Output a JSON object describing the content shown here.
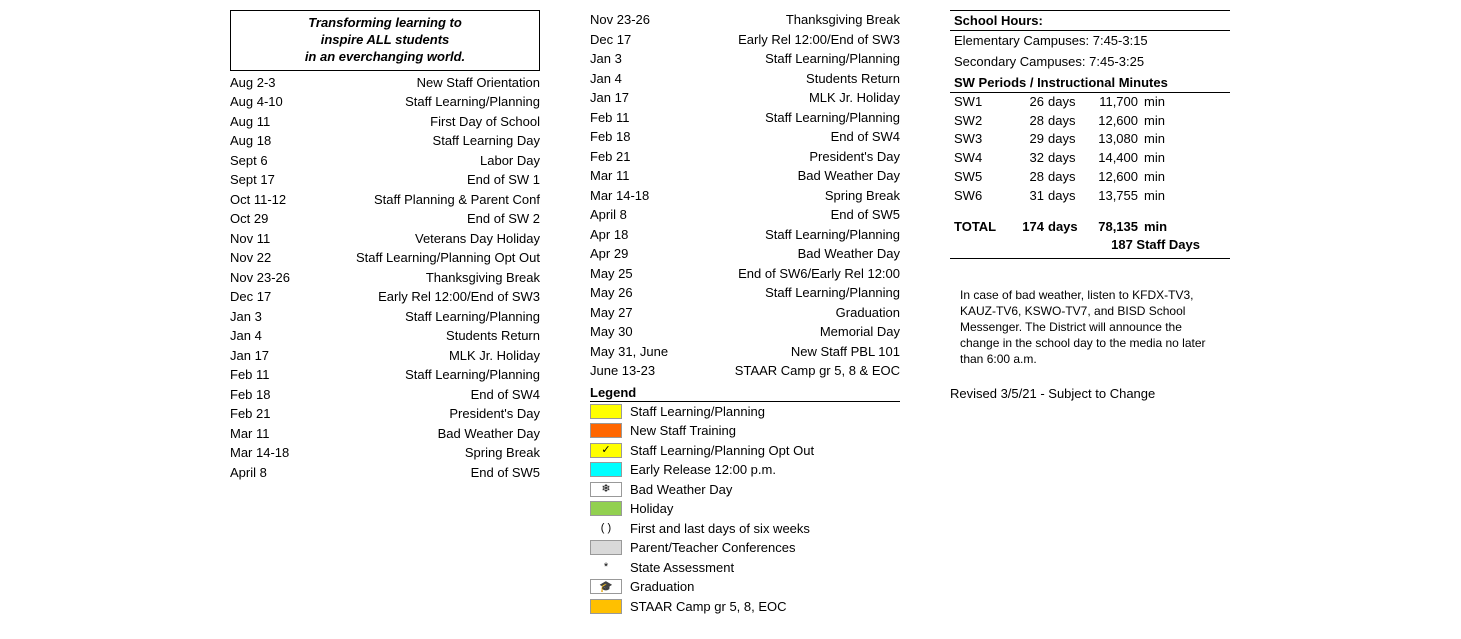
{
  "motto": {
    "line1": "Transforming learning to",
    "line2": "inspire ALL students",
    "line3": "in an everchanging world."
  },
  "col1_events": [
    {
      "date": "Aug 2-3",
      "desc": "New Staff Orientation"
    },
    {
      "date": "Aug 4-10",
      "desc": "Staff Learning/Planning"
    },
    {
      "date": "Aug 11",
      "desc": "First Day of School"
    },
    {
      "date": "Aug 18",
      "desc": "Staff Learning Day"
    },
    {
      "date": "Sept 6",
      "desc": "Labor Day"
    },
    {
      "date": "Sept 17",
      "desc": "End of SW 1"
    },
    {
      "date": "Oct 11-12",
      "desc": "Staff Planning & Parent Conf"
    },
    {
      "date": "Oct 29",
      "desc": "End of SW 2"
    },
    {
      "date": "Nov 11",
      "desc": "Veterans Day Holiday"
    },
    {
      "date": "Nov 22",
      "desc": "Staff Learning/Planning Opt Out"
    },
    {
      "date": "Nov 23-26",
      "desc": "Thanksgiving Break"
    },
    {
      "date": "Dec 17",
      "desc": "Early Rel 12:00/End of SW3"
    },
    {
      "date": "Jan 3",
      "desc": "Staff Learning/Planning"
    },
    {
      "date": "Jan 4",
      "desc": "Students Return"
    },
    {
      "date": "Jan 17",
      "desc": "MLK Jr. Holiday"
    },
    {
      "date": "Feb 11",
      "desc": "Staff Learning/Planning"
    },
    {
      "date": "Feb 18",
      "desc": "End of SW4"
    },
    {
      "date": "Feb 21",
      "desc": "President's Day"
    },
    {
      "date": "Mar 11",
      "desc": "Bad Weather Day"
    },
    {
      "date": "Mar 14-18",
      "desc": "Spring Break"
    },
    {
      "date": "April 8",
      "desc": "End of SW5"
    }
  ],
  "col2_events": [
    {
      "date": "Nov 23-26",
      "desc": "Thanksgiving Break"
    },
    {
      "date": "Dec 17",
      "desc": "Early Rel 12:00/End of SW3"
    },
    {
      "date": "Jan 3",
      "desc": "Staff Learning/Planning"
    },
    {
      "date": "Jan 4",
      "desc": "Students Return"
    },
    {
      "date": "Jan 17",
      "desc": "MLK Jr. Holiday"
    },
    {
      "date": "Feb 11",
      "desc": "Staff Learning/Planning"
    },
    {
      "date": "Feb 18",
      "desc": "End of SW4"
    },
    {
      "date": "Feb 21",
      "desc": "President's Day"
    },
    {
      "date": "Mar 11",
      "desc": "Bad Weather Day"
    },
    {
      "date": "Mar 14-18",
      "desc": "Spring Break"
    },
    {
      "date": "April 8",
      "desc": "End of SW5"
    },
    {
      "date": "Apr 18",
      "desc": "Staff Learning/Planning"
    },
    {
      "date": "Apr 29",
      "desc": "Bad Weather Day"
    },
    {
      "date": "May 25",
      "desc": "End of SW6/Early Rel 12:00"
    },
    {
      "date": "May 26",
      "desc": "Staff Learning/Planning"
    },
    {
      "date": "May 27",
      "desc": "Graduation"
    },
    {
      "date": "May 30",
      "desc": "Memorial Day"
    },
    {
      "date": "May 31, June",
      "desc": "New Staff PBL 101"
    },
    {
      "date": "June 13-23",
      "desc": "STAAR Camp gr 5, 8 & EOC"
    }
  ],
  "legend": {
    "header": "Legend",
    "items": [
      {
        "color": "#ffff00",
        "symbol": "",
        "label": "Staff Learning/Planning"
      },
      {
        "color": "#ff6600",
        "symbol": "",
        "label": "New Staff Training"
      },
      {
        "color": "#ffff00",
        "symbol": "✓",
        "label": "Staff Learning/Planning Opt Out"
      },
      {
        "color": "#00ffff",
        "symbol": "",
        "label": "Early Release 12:00 p.m."
      },
      {
        "color": "#ffffff",
        "symbol": "❄",
        "label": "Bad Weather Day"
      },
      {
        "color": "#92d050",
        "symbol": "",
        "label": "Holiday"
      },
      {
        "color": "#ffffff",
        "symbol": "( )",
        "label": "First and last days of six weeks",
        "noborder": true
      },
      {
        "color": "#d9d9d9",
        "symbol": "",
        "label": "Parent/Teacher Conferences"
      },
      {
        "color": "#ffffff",
        "symbol": "*",
        "label": "State Assessment",
        "noborder": true
      },
      {
        "color": "#ffffff",
        "symbol": "🎓",
        "label": "Graduation"
      },
      {
        "color": "#ffc000",
        "symbol": "",
        "label": "STAAR Camp gr 5, 8, EOC"
      }
    ]
  },
  "hours": {
    "header": "School Hours:",
    "elementary": "Elementary Campuses: 7:45-3:15",
    "secondary": "Secondary Campuses: 7:45-3:25",
    "sw_header": "SW Periods / Instructional Minutes",
    "periods": [
      {
        "label": "SW1",
        "days": "26",
        "min": "11,700"
      },
      {
        "label": "SW2",
        "days": "28",
        "min": "12,600"
      },
      {
        "label": "SW3",
        "days": "29",
        "min": "13,080"
      },
      {
        "label": "SW4",
        "days": "32",
        "min": "14,400"
      },
      {
        "label": "SW5",
        "days": "28",
        "min": "12,600"
      },
      {
        "label": "SW6",
        "days": "31",
        "min": "13,755"
      }
    ],
    "total_label": "TOTAL",
    "total_days": "174",
    "total_min": "78,135",
    "days_unit": "days",
    "min_unit": "min",
    "staff_days": "187 Staff Days"
  },
  "note": "In case of bad weather, listen to KFDX-TV3, KAUZ-TV6, KSWO-TV7, and BISD School Messenger. The District will announce the change in the school day to the media no later than 6:00 a.m.",
  "revised": "Revised 3/5/21 - Subject to Change"
}
